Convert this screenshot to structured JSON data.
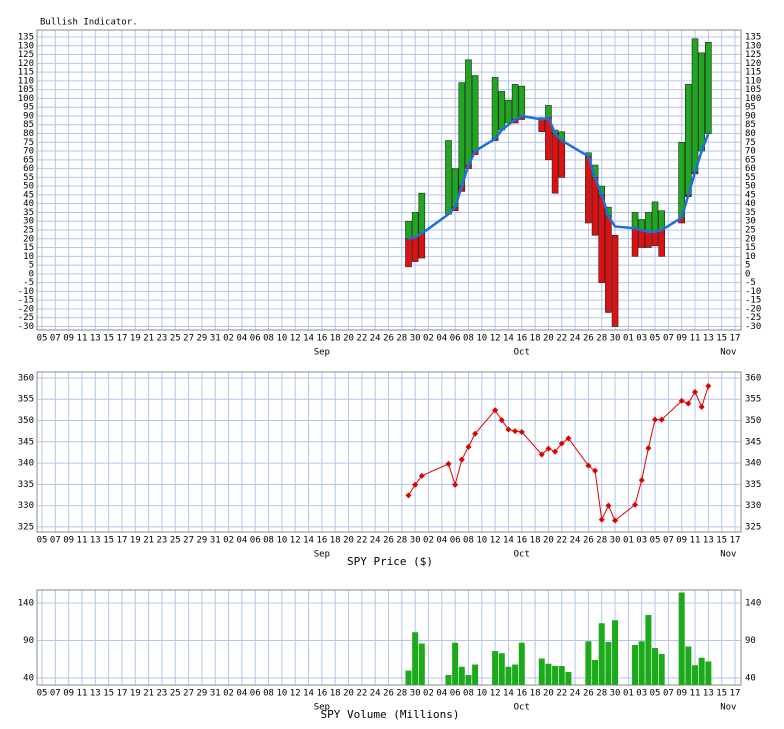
{
  "x_axis": {
    "xlim": [
      "08-05",
      "11-17"
    ],
    "xticks": [
      {
        "value": "08-05",
        "label": "05"
      },
      {
        "value": "08-07",
        "label": "07"
      },
      {
        "value": "08-09",
        "label": "09"
      },
      {
        "value": "08-11",
        "label": "11"
      },
      {
        "value": "08-13",
        "label": "13"
      },
      {
        "value": "08-15",
        "label": "15"
      },
      {
        "value": "08-17",
        "label": "17"
      },
      {
        "value": "08-19",
        "label": "19"
      },
      {
        "value": "08-21",
        "label": "21"
      },
      {
        "value": "08-23",
        "label": "23"
      },
      {
        "value": "08-25",
        "label": "25"
      },
      {
        "value": "08-27",
        "label": "27"
      },
      {
        "value": "08-29",
        "label": "29"
      },
      {
        "value": "08-31",
        "label": "31"
      },
      {
        "value": "09-02",
        "label": "02"
      },
      {
        "value": "09-04",
        "label": "04"
      },
      {
        "value": "09-06",
        "label": "06"
      },
      {
        "value": "09-08",
        "label": "08"
      },
      {
        "value": "09-10",
        "label": "10"
      },
      {
        "value": "09-12",
        "label": "12"
      },
      {
        "value": "09-14",
        "label": "14"
      },
      {
        "value": "09-16",
        "label": "16"
      },
      {
        "value": "09-18",
        "label": "18"
      },
      {
        "value": "09-20",
        "label": "20"
      },
      {
        "value": "09-22",
        "label": "22"
      },
      {
        "value": "09-24",
        "label": "24"
      },
      {
        "value": "09-26",
        "label": "26"
      },
      {
        "value": "09-28",
        "label": "28"
      },
      {
        "value": "09-30",
        "label": "30"
      },
      {
        "value": "10-02",
        "label": "02"
      },
      {
        "value": "10-04",
        "label": "04"
      },
      {
        "value": "10-06",
        "label": "06"
      },
      {
        "value": "10-08",
        "label": "08"
      },
      {
        "value": "10-10",
        "label": "10"
      },
      {
        "value": "10-12",
        "label": "12"
      },
      {
        "value": "10-14",
        "label": "14"
      },
      {
        "value": "10-16",
        "label": "16"
      },
      {
        "value": "10-18",
        "label": "18"
      },
      {
        "value": "10-20",
        "label": "20"
      },
      {
        "value": "10-22",
        "label": "22"
      },
      {
        "value": "10-24",
        "label": "24"
      },
      {
        "value": "10-26",
        "label": "26"
      },
      {
        "value": "10-28",
        "label": "28"
      },
      {
        "value": "10-30",
        "label": "30"
      },
      {
        "value": "11-01",
        "label": "01"
      },
      {
        "value": "11-03",
        "label": "03"
      },
      {
        "value": "11-05",
        "label": "05"
      },
      {
        "value": "11-07",
        "label": "07"
      },
      {
        "value": "11-09",
        "label": "09"
      },
      {
        "value": "11-11",
        "label": "11"
      },
      {
        "value": "11-13",
        "label": "13"
      },
      {
        "value": "11-15",
        "label": "15"
      },
      {
        "value": "11-17",
        "label": "17"
      }
    ],
    "month_labels": [
      {
        "value": "09-16",
        "label": "Sep"
      },
      {
        "value": "10-16",
        "label": "Oct"
      },
      {
        "value": "11-16",
        "label": "Nov"
      }
    ]
  },
  "chart_data": [
    {
      "type": "floating_bar",
      "title": "Bullish Indicator.",
      "grid": true,
      "colors": {
        "up": "#1fa81f",
        "down": "#e01010",
        "line": "#1e6fd9"
      },
      "ylim": [
        -32,
        139
      ],
      "yticks": [
        -30,
        -25,
        -20,
        -15,
        -10,
        -5,
        0,
        5,
        10,
        15,
        20,
        25,
        30,
        35,
        40,
        45,
        50,
        55,
        60,
        65,
        70,
        75,
        80,
        85,
        90,
        95,
        100,
        105,
        110,
        115,
        120,
        125,
        130,
        135
      ],
      "x": [
        "09-29",
        "09-30",
        "10-01",
        "10-05",
        "10-06",
        "10-07",
        "10-08",
        "10-09",
        "10-12",
        "10-13",
        "10-14",
        "10-15",
        "10-16",
        "10-19",
        "10-20",
        "10-21",
        "10-22",
        "10-26",
        "10-27",
        "10-28",
        "10-29",
        "10-30",
        "11-02",
        "11-03",
        "11-04",
        "11-05",
        "11-06",
        "11-09",
        "11-10",
        "11-11",
        "11-12",
        "11-13"
      ],
      "low": [
        4,
        7,
        9,
        34,
        36,
        47,
        60,
        68,
        76,
        82,
        86,
        86,
        88,
        81,
        65,
        46,
        55,
        29,
        22,
        -5,
        -22,
        -30,
        10,
        15,
        15,
        16,
        10,
        29,
        44,
        57,
        70,
        80
      ],
      "high": [
        30,
        35,
        46,
        76,
        60,
        109,
        122,
        113,
        112,
        104,
        99,
        108,
        107,
        89,
        96,
        82,
        81,
        69,
        62,
        50,
        38,
        22,
        35,
        31,
        35,
        41,
        36,
        75,
        108,
        134,
        126,
        132
      ],
      "average": [
        20,
        21,
        23,
        34,
        38,
        50,
        62,
        70,
        77,
        82,
        85,
        88,
        90,
        88,
        89,
        80,
        76,
        67,
        55,
        45,
        33,
        27,
        26,
        25,
        24,
        24,
        25,
        32,
        45,
        58,
        70,
        80
      ]
    },
    {
      "type": "line",
      "x_label": "SPY Price ($)",
      "grid": true,
      "color": "#e00000",
      "ylim": [
        323.8,
        361.4
      ],
      "yticks": [
        325,
        330,
        335,
        340,
        345,
        350,
        355,
        360
      ],
      "x": [
        "09-29",
        "09-30",
        "10-01",
        "10-05",
        "10-06",
        "10-07",
        "10-08",
        "10-09",
        "10-12",
        "10-13",
        "10-14",
        "10-15",
        "10-16",
        "10-19",
        "10-20",
        "10-21",
        "10-22",
        "10-23",
        "10-26",
        "10-27",
        "10-28",
        "10-29",
        "10-30",
        "11-02",
        "11-03",
        "11-04",
        "11-05",
        "11-06",
        "11-09",
        "11-10",
        "11-11",
        "11-12",
        "11-13"
      ],
      "values": [
        332.4,
        334.9,
        337.0,
        339.8,
        334.9,
        340.8,
        343.8,
        346.9,
        352.4,
        350.1,
        347.9,
        347.5,
        347.3,
        342.0,
        343.4,
        342.7,
        344.6,
        345.8,
        339.4,
        338.2,
        326.7,
        330.0,
        326.5,
        330.2,
        336.0,
        343.5,
        350.2,
        350.2,
        354.6,
        354.0,
        356.7,
        353.2,
        358.1
      ]
    },
    {
      "type": "bar",
      "x_label": "SPY Volume (Millions)",
      "grid": true,
      "color": "#1aaa1a",
      "ylim": [
        30.7,
        157.3
      ],
      "yticks": [
        40,
        90,
        140
      ],
      "x": [
        "09-29",
        "09-30",
        "10-01",
        "10-05",
        "10-06",
        "10-07",
        "10-08",
        "10-09",
        "10-12",
        "10-13",
        "10-14",
        "10-15",
        "10-16",
        "10-19",
        "10-20",
        "10-21",
        "10-22",
        "10-23",
        "10-26",
        "10-27",
        "10-28",
        "10-29",
        "10-30",
        "11-02",
        "11-03",
        "11-04",
        "11-05",
        "11-06",
        "11-09",
        "11-10",
        "11-11",
        "11-12",
        "11-13"
      ],
      "values": [
        50,
        101,
        86,
        44,
        87,
        55,
        44,
        58,
        76,
        73,
        55,
        58,
        87,
        66,
        59,
        56,
        56,
        48,
        89,
        64,
        113,
        88,
        117,
        84,
        89,
        124,
        80,
        72,
        154,
        82,
        57,
        67,
        62
      ]
    }
  ]
}
